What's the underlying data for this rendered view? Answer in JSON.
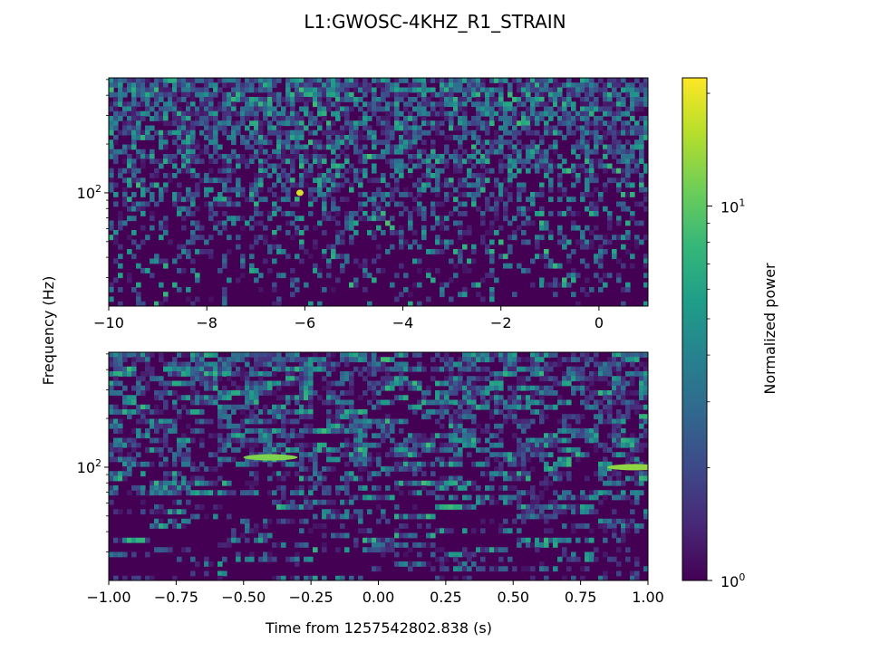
{
  "figure": {
    "title": "L1:GWOSC-4KHZ_R1_STRAIN",
    "shared_ylabel": "Frequency (Hz)"
  },
  "chart_data": [
    {
      "type": "heatmap",
      "subplot": "top",
      "colormap": "viridis",
      "x": {
        "label": "",
        "lim": [
          -10,
          1
        ],
        "ticks": [
          -10,
          -8,
          -6,
          -4,
          -2,
          0
        ],
        "tick_labels": [
          "−10",
          "−8",
          "−6",
          "−4",
          "−2",
          "0"
        ]
      },
      "y": {
        "scale": "log",
        "lim": [
          20,
          512
        ],
        "ticks": [
          100
        ],
        "tick_labels": [
          "10",
          "2"
        ]
      },
      "pattern": "dense noise speckle increasing with frequency",
      "peaks": [
        {
          "t": -6.1,
          "f": 100,
          "power": 18
        }
      ]
    },
    {
      "type": "heatmap",
      "subplot": "bottom",
      "colormap": "viridis",
      "x": {
        "label": "Time from 1257542802.838 (s)",
        "lim": [
          -1,
          1
        ],
        "ticks": [
          -1,
          -0.75,
          -0.5,
          -0.25,
          0,
          0.25,
          0.5,
          0.75,
          1
        ],
        "tick_labels": [
          "−1.00",
          "−0.75",
          "−0.50",
          "−0.25",
          "0.00",
          "0.25",
          "0.50",
          "0.75",
          "1.00"
        ]
      },
      "y": {
        "scale": "log",
        "lim": [
          20,
          512
        ],
        "ticks": [
          100
        ],
        "tick_labels": [
          "10",
          "2"
        ]
      },
      "pattern": "horizontal streaks at low frequency, speckle at high frequency",
      "peaks": [
        {
          "t": -0.4,
          "f": 115,
          "power": 12
        },
        {
          "t": 0.95,
          "f": 100,
          "power": 13
        }
      ]
    }
  ],
  "colorbar": {
    "label": "Normalized power",
    "scale": "log",
    "lim": [
      1,
      22
    ],
    "ticks": [
      {
        "value": 1,
        "base": "10",
        "exp": "0"
      },
      {
        "value": 10,
        "base": "10",
        "exp": "1"
      }
    ],
    "stops": [
      "#440154",
      "#482878",
      "#3e4989",
      "#31688e",
      "#26828e",
      "#1f9e89",
      "#35b779",
      "#6ece58",
      "#b5de2b",
      "#fde725"
    ]
  }
}
